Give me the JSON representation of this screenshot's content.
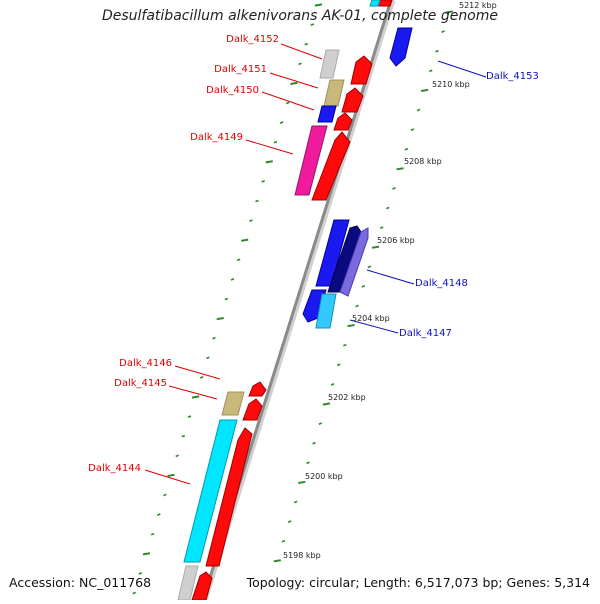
{
  "title": "Desulfatibacillum alkenivorans AK-01, complete genome",
  "footer": {
    "accession": "Accession: NC_011768",
    "topology": "Topology: circular; Length: 6,517,073 bp; Genes: 5,314"
  },
  "colors": {
    "backbone": "#8a8a8a",
    "tick": "#2a8a2a",
    "label_red": "#e00000",
    "label_blue": "#1010c0"
  },
  "scale_labels": [
    "5212 kbp",
    "5210 kbp",
    "5208 kbp",
    "5206 kbp",
    "5204 kbp",
    "5202 kbp",
    "5200 kbp",
    "5198 kbp"
  ],
  "gene_labels": [
    {
      "name": "Dalk_4152",
      "color": "#e00000"
    },
    {
      "name": "Dalk_4151",
      "color": "#e00000"
    },
    {
      "name": "Dalk_4150",
      "color": "#e00000"
    },
    {
      "name": "Dalk_4149",
      "color": "#e00000"
    },
    {
      "name": "Dalk_4153",
      "color": "#1010c0"
    },
    {
      "name": "Dalk_4148",
      "color": "#1010c0"
    },
    {
      "name": "Dalk_4147",
      "color": "#1010c0"
    },
    {
      "name": "Dalk_4146",
      "color": "#e00000"
    },
    {
      "name": "Dalk_4145",
      "color": "#e00000"
    },
    {
      "name": "Dalk_4144",
      "color": "#e00000"
    }
  ]
}
